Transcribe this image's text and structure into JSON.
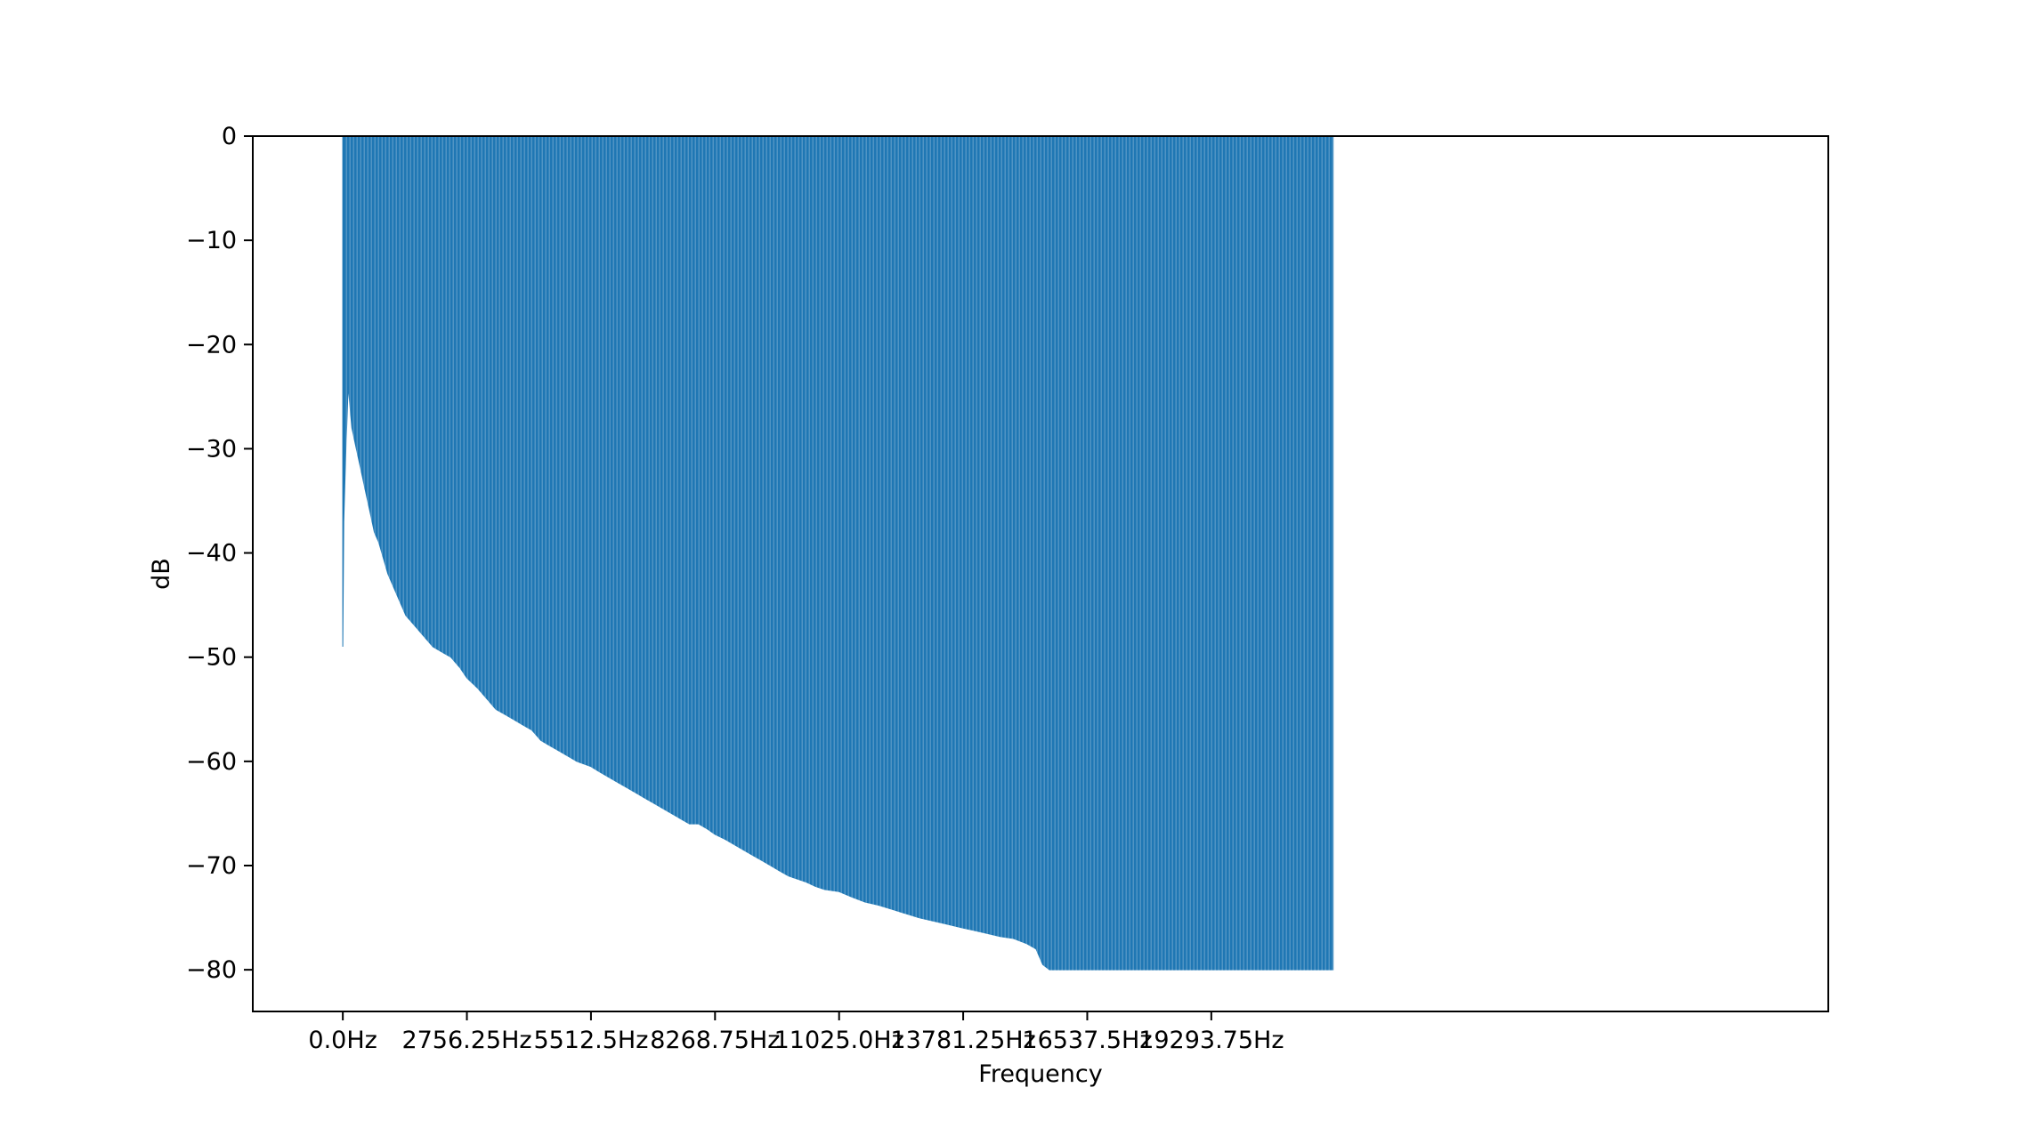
{
  "chart_data": {
    "type": "area",
    "title": "",
    "xlabel": "Frequency",
    "ylabel": "dB",
    "xlim": [
      -2000,
      33000
    ],
    "ylim": [
      -84,
      0
    ],
    "grid": false,
    "legend": "none",
    "x_ticks": [
      {
        "value": 0,
        "label": "0.0Hz"
      },
      {
        "value": 2756.25,
        "label": "2756.25Hz"
      },
      {
        "value": 5512.5,
        "label": "5512.5Hz"
      },
      {
        "value": 8268.75,
        "label": "8268.75Hz"
      },
      {
        "value": 11025.0,
        "label": "11025.0Hz"
      },
      {
        "value": 13781.25,
        "label": "13781.25Hz"
      },
      {
        "value": 16537.5,
        "label": "16537.5Hz"
      },
      {
        "value": 19293.75,
        "label": "19293.75Hz"
      }
    ],
    "y_ticks": [
      {
        "value": 0,
        "label": "0"
      },
      {
        "value": -10,
        "label": "−10"
      },
      {
        "value": -20,
        "label": "−20"
      },
      {
        "value": -30,
        "label": "−30"
      },
      {
        "value": -40,
        "label": "−40"
      },
      {
        "value": -50,
        "label": "−50"
      },
      {
        "value": -60,
        "label": "−60"
      },
      {
        "value": -70,
        "label": "−70"
      },
      {
        "value": -80,
        "label": "−80"
      }
    ],
    "series": [
      {
        "color": "#1f77b4",
        "x": [
          0,
          20,
          60,
          120,
          200,
          300,
          400,
          500,
          600,
          700,
          800,
          1000,
          1200,
          1400,
          1600,
          1800,
          2000,
          2200,
          2400,
          2600,
          2756.25,
          3000,
          3200,
          3400,
          3600,
          3800,
          4000,
          4200,
          4400,
          4600,
          4800,
          5000,
          5200,
          5512.5,
          5700,
          5900,
          6100,
          6300,
          6500,
          6700,
          6900,
          7100,
          7300,
          7500,
          7700,
          7900,
          8100,
          8268.75,
          8500,
          8700,
          8900,
          9100,
          9300,
          9500,
          9700,
          9900,
          10100,
          10300,
          10500,
          10700,
          11025,
          11300,
          11600,
          11900,
          12200,
          12500,
          12800,
          13100,
          13400,
          13781.25,
          14000,
          14300,
          14600,
          14900,
          15200,
          15400,
          15550,
          15700,
          16000,
          16537.5,
          17000,
          18000,
          19000,
          19293.75,
          20000,
          21000,
          22000
        ],
        "y": [
          -49,
          -37,
          -31,
          -24,
          -28,
          -30,
          -32,
          -34,
          -36,
          -38,
          -39,
          -42,
          -44,
          -46,
          -47,
          -48,
          -49,
          -49.5,
          -50,
          -51,
          -52,
          -53,
          -54,
          -55,
          -55.5,
          -56,
          -56.5,
          -57,
          -58,
          -58.5,
          -59,
          -59.5,
          -60,
          -60.5,
          -61,
          -61.5,
          -62,
          -62.5,
          -63,
          -63.5,
          -64,
          -64.5,
          -65,
          -65.5,
          -66,
          -66,
          -66.5,
          -67,
          -67.5,
          -68,
          -68.5,
          -69,
          -69.5,
          -70,
          -70.5,
          -71,
          -71.3,
          -71.6,
          -72,
          -72.3,
          -72.5,
          -73,
          -73.5,
          -73.8,
          -74.2,
          -74.6,
          -75,
          -75.3,
          -75.6,
          -76,
          -76.2,
          -76.5,
          -76.8,
          -77,
          -77.5,
          -78,
          -79.5,
          -80,
          -80,
          -80,
          -80,
          -80,
          -80,
          -80,
          -80,
          -80,
          -80
        ]
      }
    ]
  }
}
